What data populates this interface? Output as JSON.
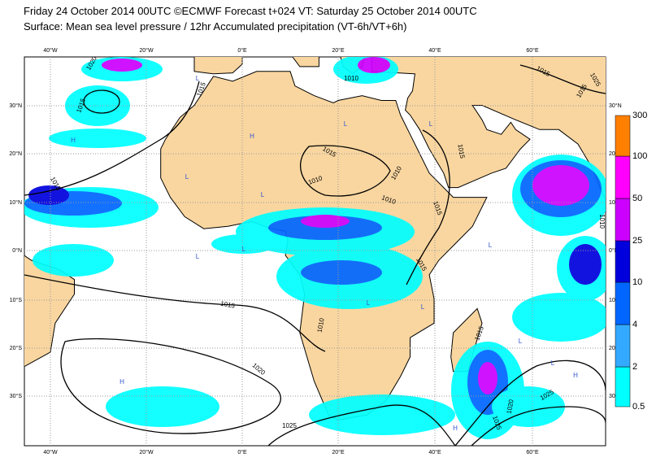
{
  "header": {
    "line1": "Friday 24 October 2014 00UTC ©ECMWF Forecast t+024 VT: Saturday 25 October 2014 00UTC",
    "line2": "Surface: Mean sea level pressure / 12hr Accumulated precipitation (VT-6h/VT+6h)"
  },
  "map": {
    "lon_labels": [
      "40°W",
      "20°W",
      "0°E",
      "20°E",
      "40°E",
      "60°E"
    ],
    "lat_labels": [
      "30°N",
      "20°N",
      "10°N",
      "0°N",
      "10°S",
      "20°S",
      "30°S"
    ],
    "isobar_labels": [
      "1020",
      "1015",
      "1015",
      "1010",
      "1015",
      "1015",
      "1025",
      "1015",
      "1015",
      "1010",
      "1010",
      "1010",
      "1015",
      "1015",
      "1015",
      "1015",
      "1010",
      "1020",
      "1025",
      "1015",
      "1020",
      "1025",
      "1025",
      "1010"
    ],
    "centers": [
      "L",
      "L",
      "L",
      "L",
      "L",
      "L",
      "L",
      "L",
      "L",
      "L",
      "L",
      "L",
      "H",
      "H",
      "H",
      "H",
      "H"
    ]
  },
  "legend": {
    "labels": [
      "0.5",
      "2",
      "4",
      "10",
      "25",
      "50",
      "100",
      "300"
    ]
  }
}
